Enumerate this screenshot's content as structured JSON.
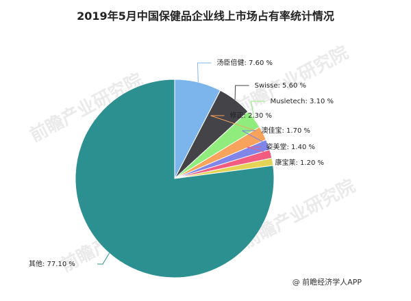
{
  "title": "2019年5月中国保健品企业线上市场占有率统计情况",
  "source": "@ 前瞻经济学人APP",
  "watermark": "前瞻产业研究院",
  "chart_data": {
    "type": "pie",
    "title": "2019年5月中国保健品企业线上市场占有率统计情况",
    "unit": "%",
    "start": "12 o'clock",
    "direction": "clockwise",
    "slices": [
      {
        "label": "汤臣倍健",
        "value": 7.6,
        "value_text": "7.60 %",
        "color": "#7cb5ec"
      },
      {
        "label": "Swisse",
        "value": 5.6,
        "value_text": "5.60 %",
        "color": "#434348"
      },
      {
        "label": "Musletech",
        "value": 3.1,
        "value_text": "3.10 %",
        "color": "#90ed7d"
      },
      {
        "label": "修正",
        "value": 2.3,
        "value_text": "2.30 %",
        "color": "#f7a35c"
      },
      {
        "label": "澳佳宝",
        "value": 1.7,
        "value_text": "1.70 %",
        "color": "#8085e9"
      },
      {
        "label": "姿美堂",
        "value": 1.4,
        "value_text": "1.40 %",
        "color": "#f15c80"
      },
      {
        "label": "康宝莱",
        "value": 1.2,
        "value_text": "1.20 %",
        "color": "#e4d354"
      },
      {
        "label": "其他",
        "value": 77.1,
        "value_text": "77.10 %",
        "color": "#2b908f"
      }
    ]
  }
}
